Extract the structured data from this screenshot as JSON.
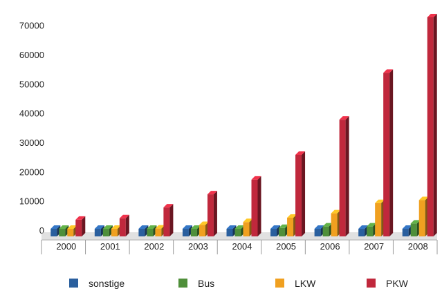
{
  "chart_data": {
    "type": "bar",
    "categories": [
      "2000",
      "2001",
      "2002",
      "2003",
      "2004",
      "2005",
      "2006",
      "2007",
      "2008"
    ],
    "series": [
      {
        "name": "sonstige",
        "color": "#2a5f9e",
        "values": [
          0,
          0,
          0,
          0,
          0,
          0,
          0,
          0,
          0
        ]
      },
      {
        "name": "Bus",
        "color": "#4f8f3a",
        "values": [
          0,
          0,
          0,
          300,
          500,
          1000,
          1500,
          1500,
          2500
        ]
      },
      {
        "name": "LKW",
        "color": "#f0a020",
        "values": [
          0,
          500,
          800,
          2000,
          3000,
          4500,
          6000,
          9500,
          10500
        ]
      },
      {
        "name": "PKW",
        "color": "#c0283c",
        "values": [
          3800,
          4300,
          8000,
          12500,
          17500,
          26000,
          38000,
          54000,
          73000
        ]
      }
    ],
    "yticks": [
      0,
      10000,
      20000,
      30000,
      40000,
      50000,
      60000,
      70000
    ],
    "ylim": [
      0,
      73000
    ],
    "legend_position": "bottom",
    "grid": false
  }
}
